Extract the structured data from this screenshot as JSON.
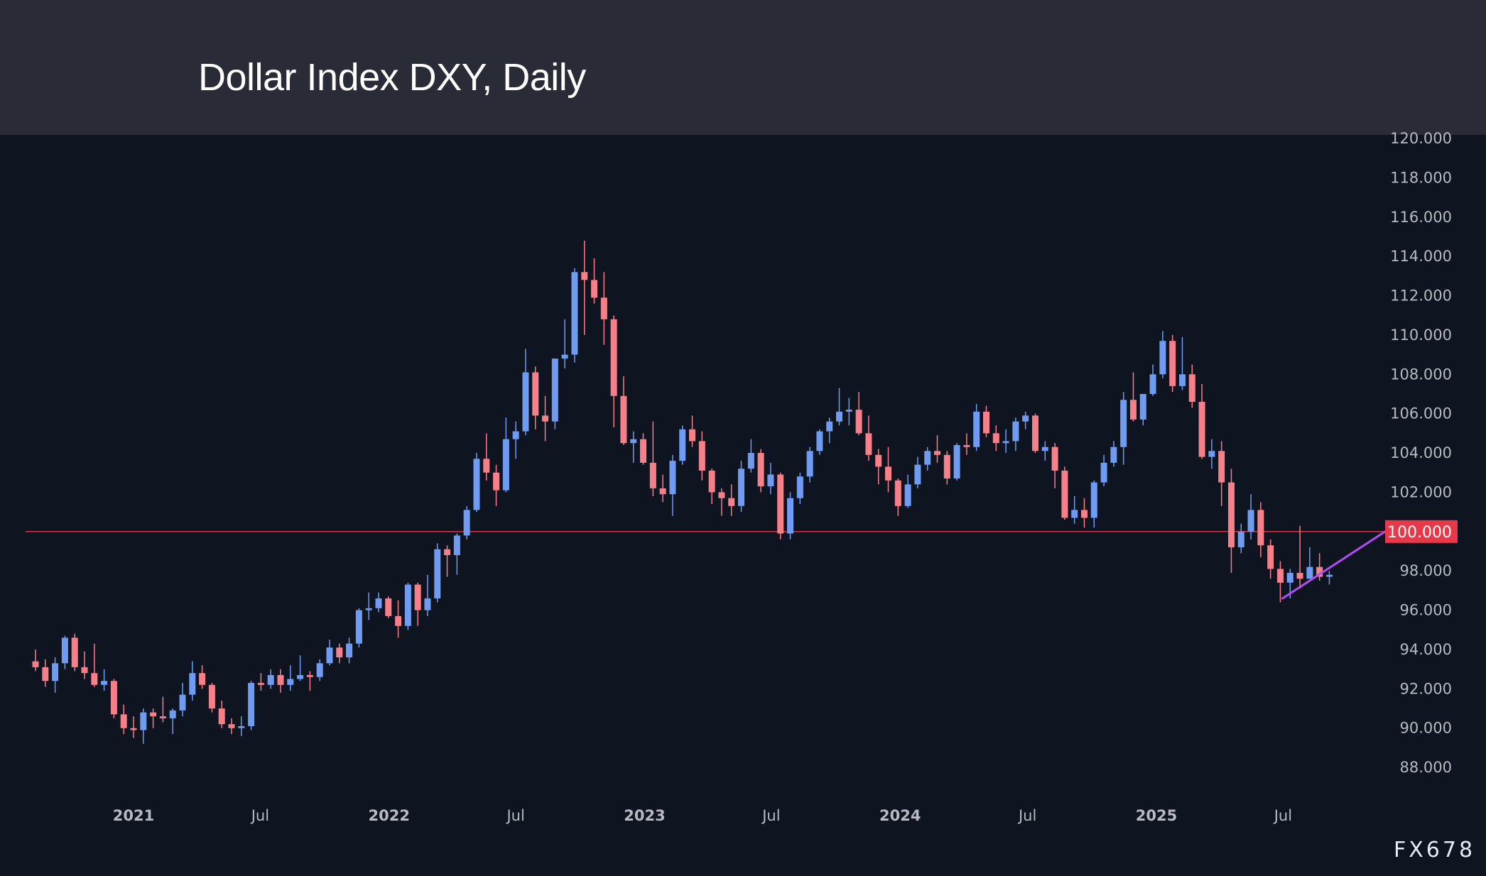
{
  "title": "Dollar Index DXY, Daily",
  "watermark": "FX678",
  "colors": {
    "background": "#0e1420",
    "header": "#292b36",
    "up": "#6f9cf2",
    "down": "#f6808a",
    "level_line": "#e8394a",
    "trendline": "#b04cf0"
  },
  "chart_data": {
    "type": "candlestick",
    "title": "Dollar Index DXY, Daily",
    "ylim": [
      86,
      120
    ],
    "y_ticks": [
      "120.000",
      "118.000",
      "116.000",
      "114.000",
      "112.000",
      "110.000",
      "108.000",
      "106.000",
      "104.000",
      "102.000",
      "100.000",
      "98.000",
      "96.000",
      "94.000",
      "92.000",
      "90.000",
      "88.000"
    ],
    "x_ticks": [
      {
        "label": "2021",
        "date": "2021-01-01",
        "year": true
      },
      {
        "label": "Jul",
        "date": "2021-07-01",
        "year": false
      },
      {
        "label": "2022",
        "date": "2022-01-01",
        "year": true
      },
      {
        "label": "Jul",
        "date": "2022-07-01",
        "year": false
      },
      {
        "label": "2023",
        "date": "2023-01-01",
        "year": true
      },
      {
        "label": "Jul",
        "date": "2023-07-01",
        "year": false
      },
      {
        "label": "2024",
        "date": "2024-01-01",
        "year": true
      },
      {
        "label": "Jul",
        "date": "2024-07-01",
        "year": false
      },
      {
        "label": "2025",
        "date": "2025-01-01",
        "year": true
      },
      {
        "label": "Jul",
        "date": "2025-07-01",
        "year": false
      }
    ],
    "horizontal_level": {
      "value": 100.0,
      "label": "100.000"
    },
    "trendline": {
      "start": {
        "date": "2025-06-30",
        "value": 96.6
      },
      "end": {
        "date": "2025-10-15",
        "value": 100.0
      }
    },
    "grid": false,
    "candles_columns": [
      "date",
      "open",
      "high",
      "low",
      "close"
    ],
    "candles": [
      [
        "2020-08-14",
        93.4,
        94.0,
        92.9,
        93.1
      ],
      [
        "2020-08-28",
        93.1,
        93.5,
        92.1,
        92.4
      ],
      [
        "2020-09-11",
        92.4,
        93.6,
        91.8,
        93.3
      ],
      [
        "2020-09-25",
        93.3,
        94.7,
        93.0,
        94.6
      ],
      [
        "2020-10-09",
        94.6,
        94.8,
        92.9,
        93.1
      ],
      [
        "2020-10-23",
        93.1,
        93.9,
        92.5,
        92.8
      ],
      [
        "2020-11-06",
        92.8,
        94.3,
        92.1,
        92.2
      ],
      [
        "2020-11-20",
        92.2,
        93.0,
        91.9,
        92.4
      ],
      [
        "2020-12-04",
        92.4,
        92.5,
        90.5,
        90.7
      ],
      [
        "2020-12-18",
        90.7,
        91.2,
        89.7,
        90.0
      ],
      [
        "2021-01-01",
        90.0,
        90.6,
        89.5,
        89.9
      ],
      [
        "2021-01-15",
        89.9,
        91.0,
        89.2,
        90.8
      ],
      [
        "2021-01-29",
        90.8,
        91.0,
        90.0,
        90.6
      ],
      [
        "2021-02-12",
        90.6,
        91.6,
        90.3,
        90.5
      ],
      [
        "2021-02-26",
        90.5,
        91.0,
        89.7,
        90.9
      ],
      [
        "2021-03-12",
        90.9,
        92.3,
        90.6,
        91.7
      ],
      [
        "2021-03-26",
        91.7,
        93.4,
        91.4,
        92.8
      ],
      [
        "2021-04-09",
        92.8,
        93.2,
        92.0,
        92.2
      ],
      [
        "2021-04-23",
        92.2,
        92.3,
        90.8,
        91.0
      ],
      [
        "2021-05-07",
        91.0,
        91.4,
        90.0,
        90.2
      ],
      [
        "2021-05-21",
        90.2,
        90.5,
        89.7,
        90.0
      ],
      [
        "2021-06-04",
        90.0,
        90.6,
        89.6,
        90.1
      ],
      [
        "2021-06-18",
        90.1,
        92.4,
        89.9,
        92.3
      ],
      [
        "2021-07-02",
        92.3,
        92.8,
        91.9,
        92.2
      ],
      [
        "2021-07-16",
        92.2,
        93.0,
        92.0,
        92.7
      ],
      [
        "2021-07-30",
        92.7,
        93.0,
        91.8,
        92.2
      ],
      [
        "2021-08-13",
        92.2,
        93.2,
        91.9,
        92.5
      ],
      [
        "2021-08-27",
        92.5,
        93.7,
        92.4,
        92.7
      ],
      [
        "2021-09-10",
        92.7,
        92.9,
        91.9,
        92.6
      ],
      [
        "2021-09-24",
        92.6,
        93.5,
        92.4,
        93.3
      ],
      [
        "2021-10-08",
        93.3,
        94.5,
        93.2,
        94.1
      ],
      [
        "2021-10-22",
        94.1,
        94.3,
        93.3,
        93.6
      ],
      [
        "2021-11-05",
        93.6,
        94.6,
        93.3,
        94.3
      ],
      [
        "2021-11-19",
        94.3,
        96.1,
        94.1,
        96.0
      ],
      [
        "2021-12-03",
        96.0,
        96.9,
        95.5,
        96.1
      ],
      [
        "2021-12-17",
        96.1,
        96.9,
        95.9,
        96.6
      ],
      [
        "2021-12-31",
        96.6,
        96.7,
        95.6,
        95.7
      ],
      [
        "2022-01-14",
        95.7,
        96.5,
        94.6,
        95.2
      ],
      [
        "2022-01-28",
        95.2,
        97.4,
        95.0,
        97.3
      ],
      [
        "2022-02-11",
        97.3,
        97.4,
        95.2,
        96.0
      ],
      [
        "2022-02-25",
        96.0,
        97.8,
        95.7,
        96.6
      ],
      [
        "2022-03-11",
        96.6,
        99.4,
        96.4,
        99.1
      ],
      [
        "2022-03-25",
        99.1,
        99.3,
        97.7,
        98.8
      ],
      [
        "2022-04-08",
        98.8,
        99.9,
        97.8,
        99.8
      ],
      [
        "2022-04-22",
        99.8,
        101.3,
        99.6,
        101.1
      ],
      [
        "2022-05-06",
        101.1,
        104.0,
        101.0,
        103.7
      ],
      [
        "2022-05-20",
        103.7,
        105.0,
        102.6,
        103.0
      ],
      [
        "2022-06-03",
        103.0,
        103.4,
        101.3,
        102.1
      ],
      [
        "2022-06-17",
        102.1,
        105.8,
        102.0,
        104.7
      ],
      [
        "2022-07-01",
        104.7,
        105.6,
        103.7,
        105.1
      ],
      [
        "2022-07-15",
        105.1,
        109.3,
        104.9,
        108.1
      ],
      [
        "2022-07-29",
        108.1,
        108.4,
        105.2,
        105.9
      ],
      [
        "2022-08-12",
        105.9,
        106.9,
        104.6,
        105.6
      ],
      [
        "2022-08-26",
        105.6,
        108.8,
        105.2,
        108.8
      ],
      [
        "2022-09-09",
        108.8,
        110.8,
        108.3,
        109.0
      ],
      [
        "2022-09-23",
        109.0,
        113.4,
        108.6,
        113.2
      ],
      [
        "2022-10-07",
        113.2,
        114.8,
        110.0,
        112.8
      ],
      [
        "2022-10-21",
        112.8,
        113.9,
        111.6,
        111.9
      ],
      [
        "2022-11-04",
        111.9,
        113.2,
        109.5,
        110.8
      ],
      [
        "2022-11-18",
        110.8,
        111.0,
        105.3,
        106.9
      ],
      [
        "2022-12-02",
        106.9,
        107.9,
        104.4,
        104.5
      ],
      [
        "2022-12-16",
        104.5,
        105.1,
        103.5,
        104.7
      ],
      [
        "2022-12-30",
        104.7,
        105.0,
        103.4,
        103.5
      ],
      [
        "2023-01-13",
        103.5,
        105.6,
        101.8,
        102.2
      ],
      [
        "2023-01-27",
        102.2,
        102.9,
        101.5,
        101.9
      ],
      [
        "2023-02-10",
        101.9,
        103.9,
        100.8,
        103.6
      ],
      [
        "2023-02-24",
        103.6,
        105.4,
        103.4,
        105.2
      ],
      [
        "2023-03-10",
        105.2,
        105.9,
        104.3,
        104.6
      ],
      [
        "2023-03-24",
        104.6,
        105.1,
        102.6,
        103.1
      ],
      [
        "2023-04-07",
        103.1,
        103.2,
        101.4,
        102.0
      ],
      [
        "2023-04-21",
        102.0,
        102.2,
        100.8,
        101.7
      ],
      [
        "2023-05-05",
        101.7,
        102.4,
        100.8,
        101.3
      ],
      [
        "2023-05-19",
        101.3,
        103.6,
        101.0,
        103.2
      ],
      [
        "2023-06-02",
        103.2,
        104.7,
        103.0,
        104.0
      ],
      [
        "2023-06-16",
        104.0,
        104.2,
        102.0,
        102.3
      ],
      [
        "2023-06-30",
        102.3,
        103.5,
        101.9,
        102.9
      ],
      [
        "2023-07-14",
        102.9,
        103.0,
        99.6,
        99.9
      ],
      [
        "2023-07-28",
        99.9,
        102.0,
        99.6,
        101.7
      ],
      [
        "2023-08-11",
        101.7,
        103.0,
        101.4,
        102.8
      ],
      [
        "2023-08-25",
        102.8,
        104.3,
        102.5,
        104.1
      ],
      [
        "2023-09-08",
        104.1,
        105.2,
        103.9,
        105.1
      ],
      [
        "2023-09-22",
        105.1,
        105.8,
        104.5,
        105.6
      ],
      [
        "2023-10-06",
        105.6,
        107.3,
        105.4,
        106.1
      ],
      [
        "2023-10-20",
        106.1,
        106.8,
        105.4,
        106.2
      ],
      [
        "2023-11-03",
        106.2,
        107.1,
        104.9,
        105.0
      ],
      [
        "2023-11-17",
        105.0,
        105.9,
        103.6,
        103.9
      ],
      [
        "2023-12-01",
        103.9,
        104.2,
        102.4,
        103.3
      ],
      [
        "2023-12-15",
        103.3,
        104.3,
        102.0,
        102.6
      ],
      [
        "2023-12-29",
        102.6,
        102.7,
        100.8,
        101.3
      ],
      [
        "2024-01-12",
        101.3,
        102.9,
        101.2,
        102.4
      ],
      [
        "2024-01-26",
        102.4,
        103.8,
        102.2,
        103.4
      ],
      [
        "2024-02-09",
        103.4,
        104.3,
        103.1,
        104.1
      ],
      [
        "2024-02-23",
        104.1,
        104.9,
        103.5,
        103.9
      ],
      [
        "2024-03-08",
        103.9,
        104.1,
        102.4,
        102.7
      ],
      [
        "2024-03-22",
        102.7,
        104.5,
        102.6,
        104.4
      ],
      [
        "2024-04-05",
        104.4,
        105.0,
        103.9,
        104.3
      ],
      [
        "2024-04-19",
        104.3,
        106.5,
        104.1,
        106.1
      ],
      [
        "2024-05-03",
        106.1,
        106.4,
        104.8,
        105.0
      ],
      [
        "2024-05-17",
        105.0,
        105.4,
        104.1,
        104.5
      ],
      [
        "2024-05-31",
        104.5,
        105.2,
        104.0,
        104.6
      ],
      [
        "2024-06-14",
        104.6,
        105.8,
        104.1,
        105.6
      ],
      [
        "2024-06-28",
        105.6,
        106.1,
        105.2,
        105.9
      ],
      [
        "2024-07-12",
        105.9,
        106.0,
        104.0,
        104.1
      ],
      [
        "2024-07-26",
        104.1,
        104.6,
        103.6,
        104.3
      ],
      [
        "2024-08-09",
        104.3,
        104.5,
        102.2,
        103.1
      ],
      [
        "2024-08-23",
        103.1,
        103.3,
        100.6,
        100.7
      ],
      [
        "2024-09-06",
        100.7,
        101.8,
        100.4,
        101.1
      ],
      [
        "2024-09-20",
        101.1,
        101.7,
        100.2,
        100.7
      ],
      [
        "2024-10-04",
        100.7,
        102.6,
        100.2,
        102.5
      ],
      [
        "2024-10-18",
        102.5,
        103.9,
        102.3,
        103.5
      ],
      [
        "2024-11-01",
        103.5,
        104.6,
        103.3,
        104.3
      ],
      [
        "2024-11-15",
        104.3,
        107.1,
        103.4,
        106.7
      ],
      [
        "2024-11-29",
        106.7,
        108.1,
        105.6,
        105.7
      ],
      [
        "2024-12-13",
        105.7,
        107.0,
        105.4,
        107.0
      ],
      [
        "2024-12-27",
        107.0,
        108.5,
        106.9,
        108.0
      ],
      [
        "2025-01-10",
        108.0,
        110.2,
        107.8,
        109.7
      ],
      [
        "2025-01-24",
        109.7,
        110.0,
        107.1,
        107.4
      ],
      [
        "2025-02-07",
        107.4,
        109.9,
        107.2,
        108.0
      ],
      [
        "2025-02-21",
        108.0,
        108.5,
        106.3,
        106.6
      ],
      [
        "2025-03-07",
        106.6,
        107.5,
        103.7,
        103.8
      ],
      [
        "2025-03-21",
        103.8,
        104.7,
        103.2,
        104.1
      ],
      [
        "2025-04-04",
        104.1,
        104.6,
        101.3,
        102.5
      ],
      [
        "2025-04-18",
        102.5,
        103.2,
        97.9,
        99.2
      ],
      [
        "2025-05-02",
        99.2,
        100.4,
        98.9,
        100.0
      ],
      [
        "2025-05-16",
        100.0,
        101.9,
        99.6,
        101.1
      ],
      [
        "2025-05-30",
        101.1,
        101.5,
        98.7,
        99.3
      ],
      [
        "2025-06-13",
        99.3,
        99.6,
        97.6,
        98.1
      ],
      [
        "2025-06-27",
        98.1,
        98.5,
        96.4,
        97.4
      ],
      [
        "2025-07-11",
        97.4,
        98.1,
        96.6,
        97.9
      ],
      [
        "2025-07-25",
        97.9,
        100.3,
        97.1,
        97.6
      ],
      [
        "2025-08-08",
        97.6,
        99.2,
        97.6,
        98.2
      ],
      [
        "2025-08-22",
        98.2,
        98.9,
        97.5,
        97.7
      ],
      [
        "2025-09-05",
        97.7,
        98.0,
        97.3,
        97.8
      ]
    ]
  }
}
